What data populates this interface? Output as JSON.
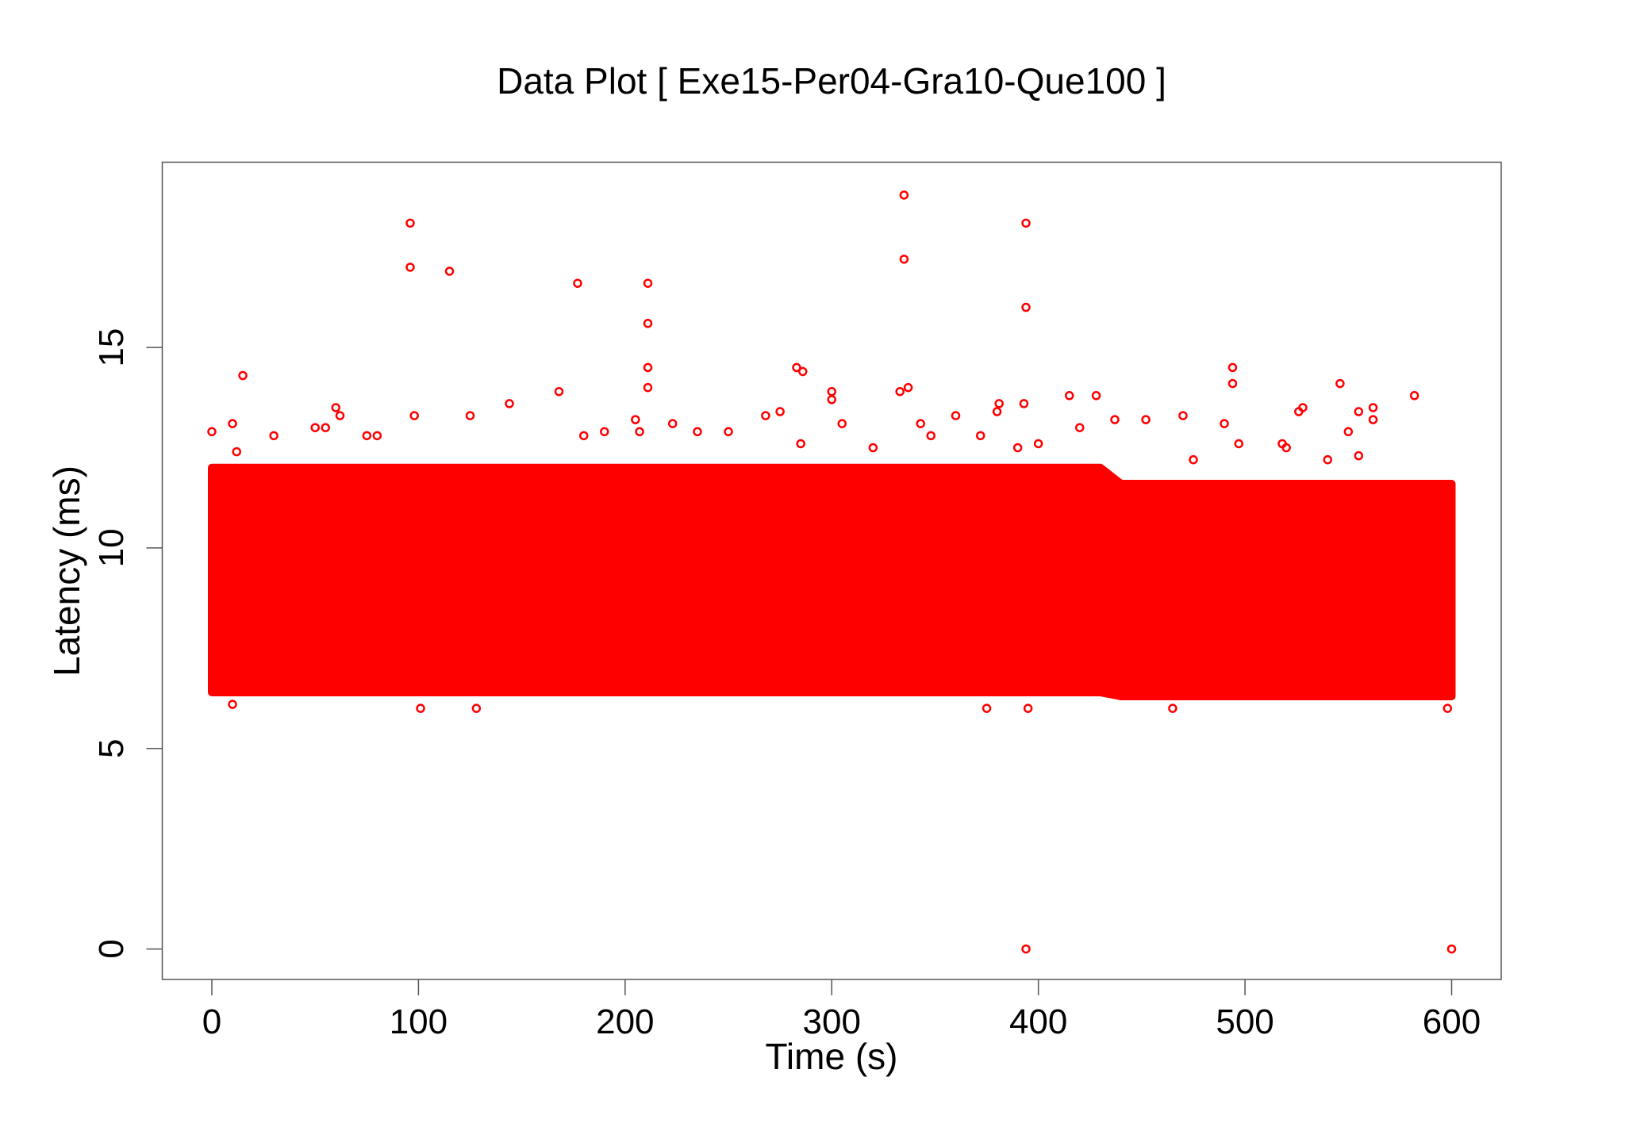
{
  "chart_data": {
    "type": "scatter",
    "title": "Data Plot [ Exe15-Per04-Gra10-Que100 ]",
    "x_label": "Time (s)",
    "y_label": "Latency (ms)",
    "xlim": [
      -24,
      624
    ],
    "ylim": [
      -0.76,
      19.62
    ],
    "xticks": [
      0,
      100,
      200,
      300,
      400,
      500,
      600
    ],
    "yticks": [
      0,
      5,
      10,
      15
    ],
    "color": "#ff0000",
    "envelope": {
      "x": [
        0,
        430,
        440,
        600
      ],
      "low": [
        6.4,
        6.4,
        6.3,
        6.3
      ],
      "high": [
        12.0,
        12.0,
        11.6,
        11.6
      ]
    },
    "x": [
      96,
      96,
      115,
      177,
      211,
      211,
      211,
      211,
      335,
      335,
      394,
      394,
      394,
      600,
      15,
      283,
      286,
      494,
      494,
      546,
      337,
      333,
      168,
      582,
      300,
      415,
      428,
      393,
      381,
      562,
      555,
      528,
      526,
      60,
      62,
      144,
      98,
      275,
      268,
      300,
      0,
      10,
      12,
      50,
      55,
      75,
      80,
      125,
      205,
      207,
      223,
      235,
      250,
      285,
      305,
      343,
      360,
      372,
      380,
      400,
      420,
      437,
      452,
      470,
      490,
      497,
      518,
      550,
      562,
      30,
      180,
      190,
      320,
      348,
      390,
      475,
      520,
      540,
      555,
      395,
      101,
      465,
      10,
      375,
      598,
      128
    ],
    "values": [
      18.1,
      17.0,
      16.9,
      16.6,
      16.6,
      15.6,
      14.5,
      14.0,
      18.8,
      17.2,
      18.1,
      16.0,
      0,
      0,
      14.3,
      14.5,
      14.4,
      14.5,
      14.1,
      14.1,
      14.0,
      13.9,
      13.9,
      13.8,
      13.9,
      13.8,
      13.8,
      13.6,
      13.6,
      13.5,
      13.4,
      13.5,
      13.4,
      13.5,
      13.3,
      13.6,
      13.3,
      13.4,
      13.3,
      13.7,
      12.9,
      13.1,
      12.4,
      13.0,
      13.0,
      12.8,
      12.8,
      13.3,
      13.2,
      12.9,
      13.1,
      12.9,
      12.9,
      12.6,
      13.1,
      13.1,
      13.3,
      12.8,
      13.4,
      12.6,
      13.0,
      13.2,
      13.2,
      13.3,
      13.1,
      12.6,
      12.6,
      12.9,
      13.2,
      12.8,
      12.8,
      12.9,
      12.5,
      12.8,
      12.5,
      12.2,
      12.5,
      12.2,
      12.3,
      6.0,
      6.0,
      6.0,
      6.1,
      6.0,
      6.0,
      6.0
    ]
  }
}
